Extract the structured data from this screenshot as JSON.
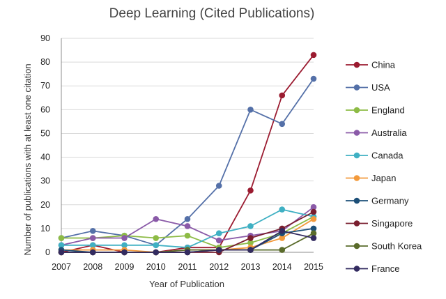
{
  "chart_data": {
    "type": "line",
    "title": "Deep Learning (Cited Publications)",
    "xlabel": "Year of Publication",
    "ylabel": "Number of publications with at least one citation",
    "x": [
      "2007",
      "2008",
      "2009",
      "2010",
      "2011",
      "2012",
      "2013",
      "2014",
      "2015"
    ],
    "ylim": [
      0,
      90
    ],
    "yticks": [
      0,
      10,
      20,
      30,
      40,
      50,
      60,
      70,
      80,
      90
    ],
    "grid": true,
    "legend_position": "right",
    "series": [
      {
        "name": "China",
        "color": "#9b1b30",
        "values": [
          0,
          3,
          0,
          0,
          2,
          2,
          26,
          66,
          83
        ]
      },
      {
        "name": "USA",
        "color": "#5470a8",
        "values": [
          6,
          9,
          7,
          3,
          14,
          28,
          60,
          54,
          73
        ]
      },
      {
        "name": "England",
        "color": "#8dbb45",
        "values": [
          6,
          6,
          7,
          6,
          7,
          2,
          4,
          8,
          15
        ]
      },
      {
        "name": "Australia",
        "color": "#8a5aa8",
        "values": [
          3,
          6,
          6,
          14,
          11,
          5,
          7,
          9,
          19
        ]
      },
      {
        "name": "Canada",
        "color": "#3fb0c3",
        "values": [
          3,
          3,
          3,
          3,
          2,
          8,
          11,
          18,
          15
        ]
      },
      {
        "name": "Japan",
        "color": "#f39a3c",
        "values": [
          1,
          1,
          1,
          0,
          1,
          1,
          2,
          6,
          14
        ]
      },
      {
        "name": "Germany",
        "color": "#1c4f78",
        "values": [
          1,
          0,
          0,
          0,
          0,
          1,
          1,
          8,
          10
        ]
      },
      {
        "name": "Singapore",
        "color": "#7a1f2f",
        "values": [
          0,
          0,
          0,
          0,
          0,
          0,
          6,
          10,
          17
        ]
      },
      {
        "name": "South Korea",
        "color": "#5a6b2b",
        "values": [
          0,
          0,
          0,
          0,
          1,
          1,
          1,
          1,
          8
        ]
      },
      {
        "name": "France",
        "color": "#332b60",
        "values": [
          0,
          0,
          0,
          0,
          0,
          1,
          1,
          9,
          6
        ]
      }
    ]
  }
}
